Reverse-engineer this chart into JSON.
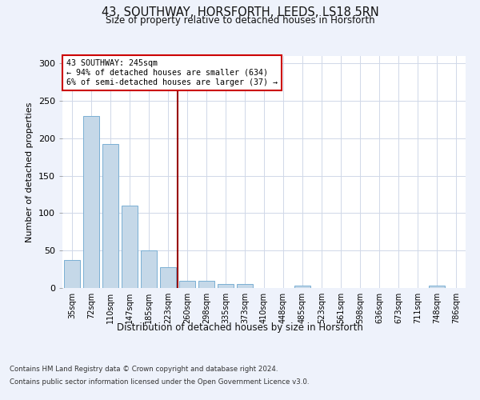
{
  "title_line1": "43, SOUTHWAY, HORSFORTH, LEEDS, LS18 5RN",
  "title_line2": "Size of property relative to detached houses in Horsforth",
  "xlabel": "Distribution of detached houses by size in Horsforth",
  "ylabel": "Number of detached properties",
  "bar_labels": [
    "35sqm",
    "72sqm",
    "110sqm",
    "147sqm",
    "185sqm",
    "223sqm",
    "260sqm",
    "298sqm",
    "335sqm",
    "373sqm",
    "410sqm",
    "448sqm",
    "485sqm",
    "523sqm",
    "561sqm",
    "598sqm",
    "636sqm",
    "673sqm",
    "711sqm",
    "748sqm",
    "786sqm"
  ],
  "bar_values": [
    37,
    230,
    192,
    110,
    50,
    28,
    10,
    10,
    5,
    5,
    0,
    0,
    3,
    0,
    0,
    0,
    0,
    0,
    0,
    3,
    0
  ],
  "bar_color": "#c5d8e8",
  "bar_edgecolor": "#7aafd4",
  "vline_color": "#990000",
  "vline_x_index": 6,
  "annotation_title": "43 SOUTHWAY: 245sqm",
  "annotation_line2": "← 94% of detached houses are smaller (634)",
  "annotation_line3": "6% of semi-detached houses are larger (37) →",
  "annotation_box_color": "#cc0000",
  "ylim": [
    0,
    310
  ],
  "yticks": [
    0,
    50,
    100,
    150,
    200,
    250,
    300
  ],
  "footer_line1": "Contains HM Land Registry data © Crown copyright and database right 2024.",
  "footer_line2": "Contains public sector information licensed under the Open Government Licence v3.0.",
  "bg_color": "#eef2fb",
  "plot_bg_color": "#ffffff",
  "grid_color": "#d0d8e8"
}
